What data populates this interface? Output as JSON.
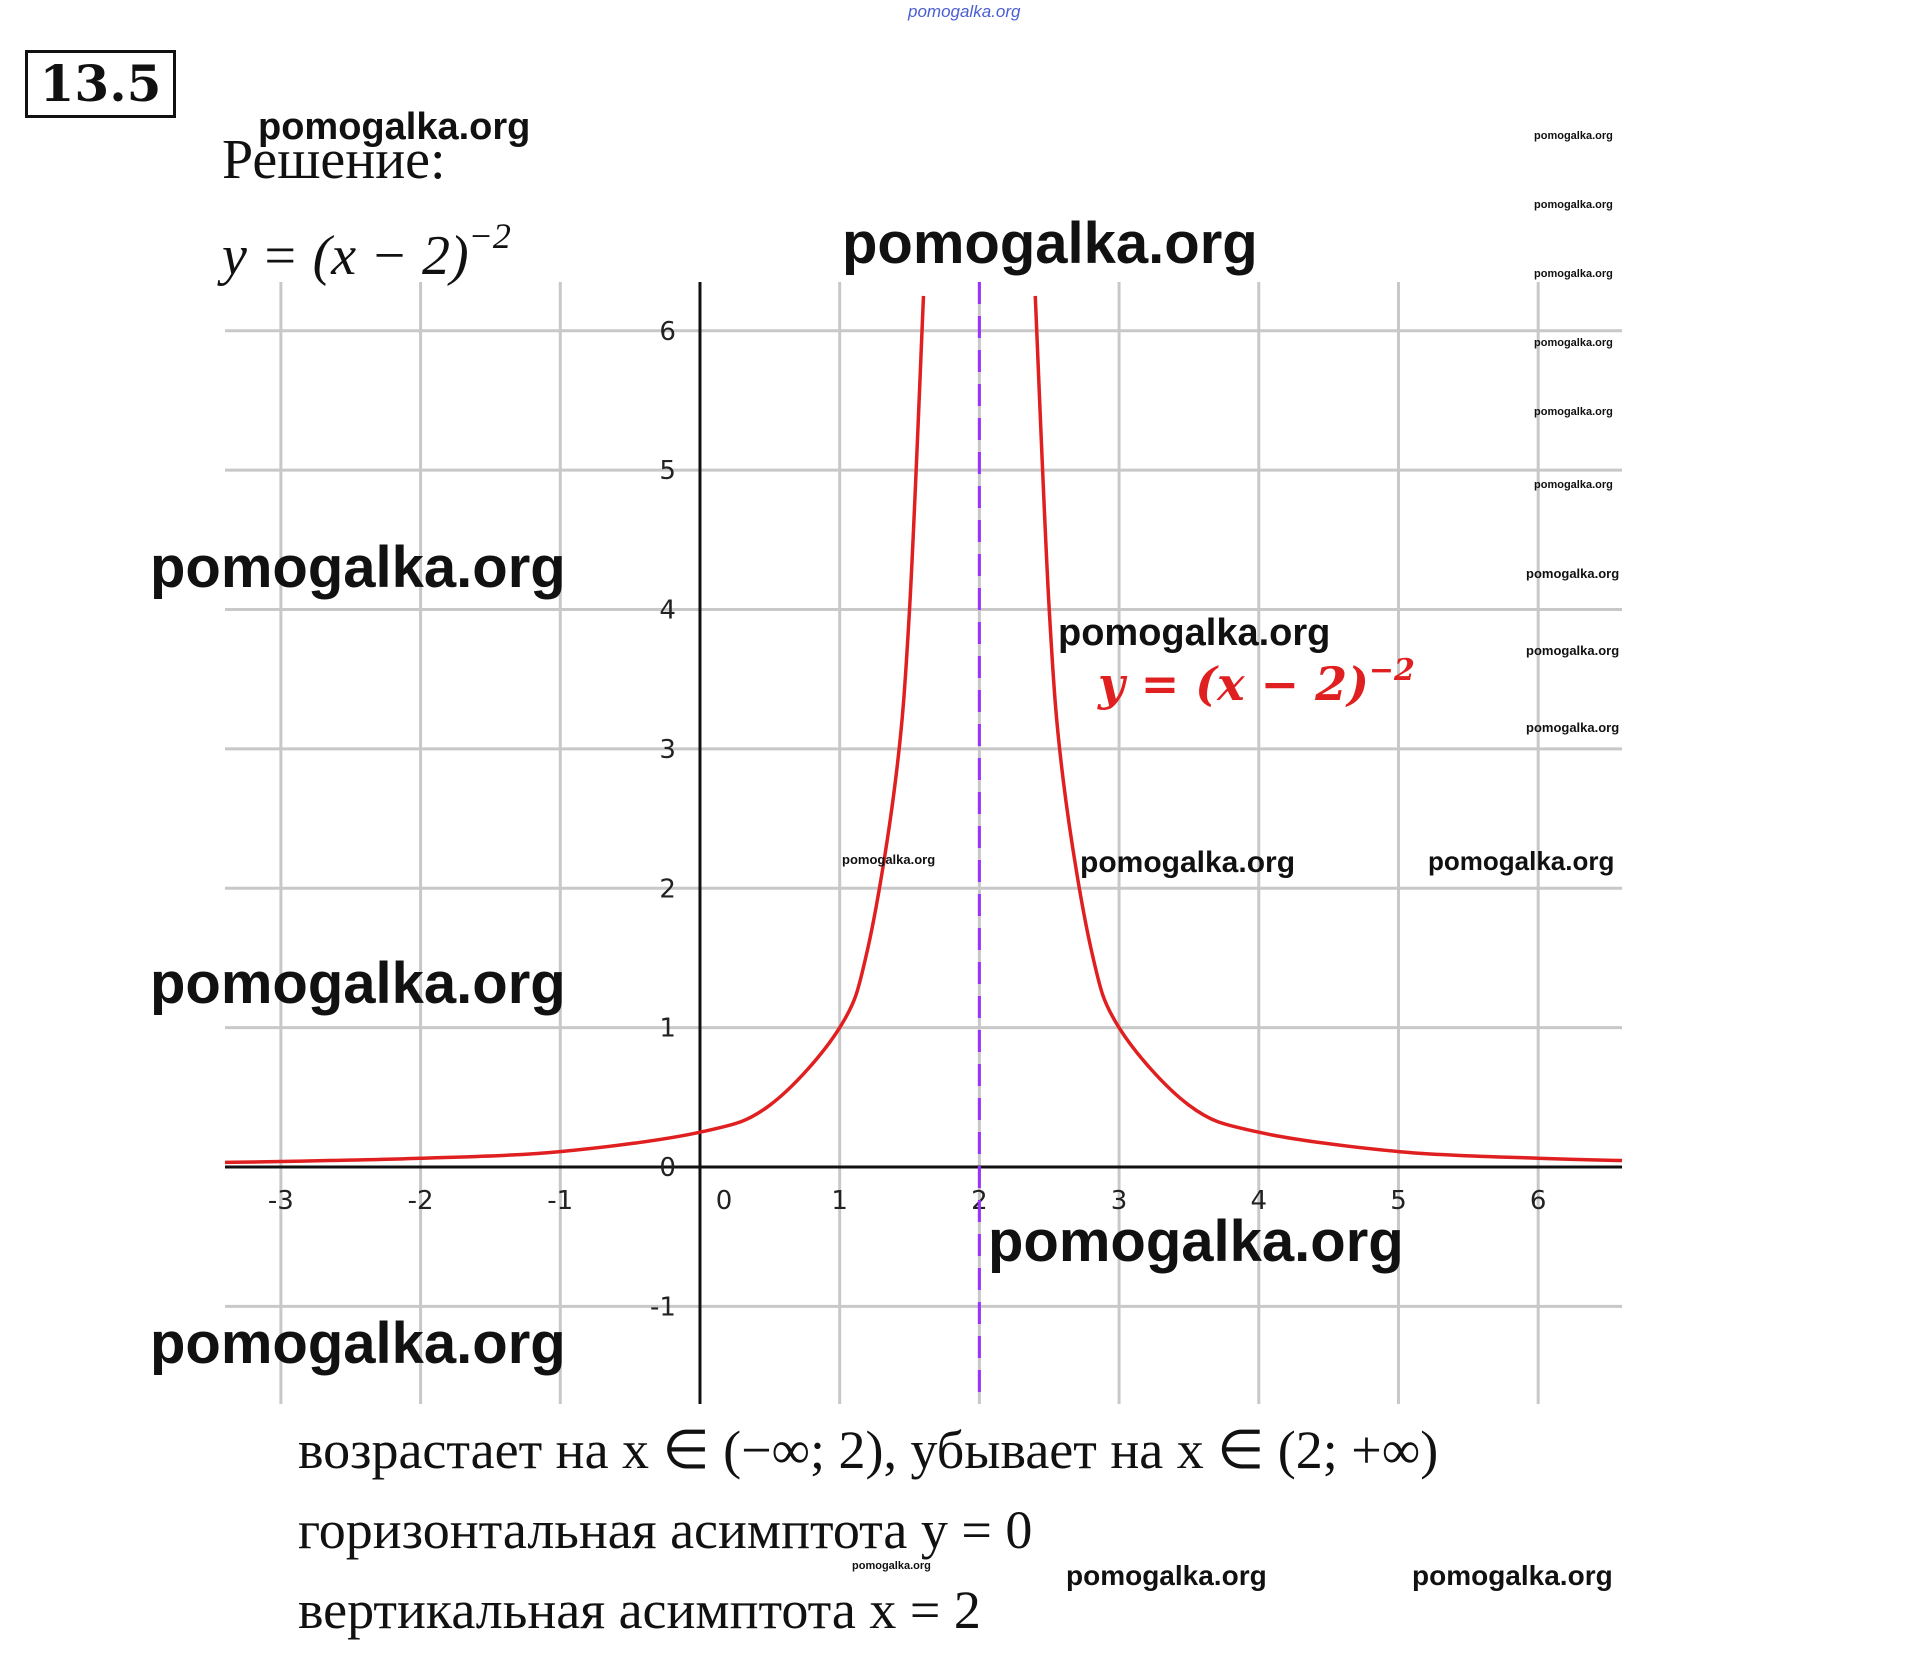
{
  "problem": {
    "number": "13.5",
    "solution_label": "Решение:"
  },
  "formula": {
    "base": "y = (x − 2)",
    "exponent": "−2"
  },
  "chart_data": {
    "type": "line",
    "title": "",
    "xlabel": "",
    "ylabel": "",
    "xlim": [
      -3.4,
      6.6
    ],
    "ylim": [
      -1.7,
      6.35
    ],
    "x_ticks": [
      "-3",
      "-2",
      "-1",
      "0",
      "1",
      "2",
      "3",
      "4",
      "5",
      "6"
    ],
    "y_ticks": [
      "-1",
      "0",
      "1",
      "2",
      "3",
      "4",
      "5",
      "6"
    ],
    "grid": true,
    "series": [
      {
        "name": "y = (x − 2)^−2",
        "label_text": {
          "base": "y = (x − 2)",
          "exponent": "−2"
        },
        "color": "#e02020",
        "x": [
          -3.4,
          -3,
          -2,
          -1,
          0,
          0.5,
          1,
          1.2,
          1.4,
          1.5,
          1.6,
          2.4,
          2.5,
          2.6,
          2.8,
          3,
          3.5,
          4,
          5,
          6,
          6.6
        ],
        "y": [
          0.034,
          0.04,
          0.063,
          0.111,
          0.25,
          0.444,
          1,
          1.563,
          2.778,
          4,
          6.25,
          6.25,
          4,
          2.778,
          1.563,
          1,
          0.444,
          0.25,
          0.111,
          0.063,
          0.047
        ]
      }
    ],
    "asymptotes": [
      {
        "type": "vertical",
        "x": 2,
        "color": "#9b30ff",
        "style": "dashed"
      },
      {
        "type": "horizontal",
        "y": 0
      }
    ]
  },
  "conclusions": {
    "line1": "возрастает на x ∈ (−∞; 2), убывает на x ∈ (2; +∞)",
    "line2": "горизонтальная асимптота y = 0",
    "line3": "вертикальная асимптота x = 2"
  },
  "watermarks": {
    "top": "pomogalka.org",
    "text": "pomogalka.org"
  },
  "colors": {
    "curve": "#e02020",
    "asymptote": "#9b30ff",
    "grid": "#c8c8c8",
    "axis": "#111111"
  }
}
